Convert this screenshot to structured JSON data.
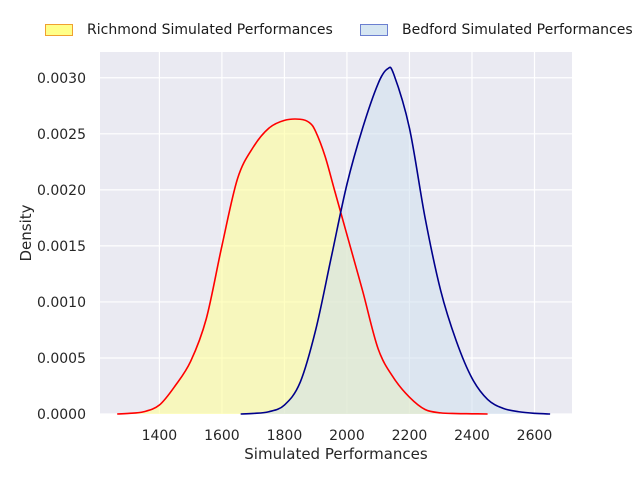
{
  "chart_data": {
    "type": "area",
    "xlabel": "Simulated Performances",
    "ylabel": "Density",
    "xlim": [
      1210,
      2720
    ],
    "ylim": [
      0,
      0.00323
    ],
    "xticks": [
      1400,
      1600,
      1800,
      2000,
      2200,
      2400,
      2600
    ],
    "xtick_labels": [
      "1400",
      "1600",
      "1800",
      "2000",
      "2200",
      "2400",
      "2600"
    ],
    "yticks": [
      0,
      0.0005,
      0.001,
      0.0015,
      0.002,
      0.0025,
      0.003
    ],
    "ytick_labels": [
      "0.0000",
      "0.0005",
      "0.0010",
      "0.0015",
      "0.0020",
      "0.0025",
      "0.0030"
    ],
    "grid": true,
    "legend_position": "top",
    "series": [
      {
        "name": "Richmond Simulated Performances",
        "line_color": "#ff0000",
        "fill_color": "#ffff99",
        "fill_opacity": 0.6,
        "x": [
          1265,
          1300,
          1350,
          1400,
          1450,
          1500,
          1550,
          1600,
          1650,
          1700,
          1750,
          1800,
          1850,
          1880,
          1900,
          1930,
          1960,
          2000,
          2050,
          2100,
          2150,
          2200,
          2250,
          2300,
          2350,
          2400,
          2450
        ],
        "y": [
          0.0,
          5e-06,
          2e-05,
          8e-05,
          0.00025,
          0.00047,
          0.00085,
          0.0015,
          0.0021,
          0.00238,
          0.00255,
          0.00262,
          0.00263,
          0.0026,
          0.00252,
          0.0023,
          0.002,
          0.0016,
          0.0011,
          0.00058,
          0.00032,
          0.00015,
          4e-05,
          1e-05,
          4e-06,
          2e-06,
          0.0
        ]
      },
      {
        "name": "Bedford Simulated Performances",
        "line_color": "#00008b",
        "fill_color": "#cfe0ef",
        "fill_opacity": 0.55,
        "x": [
          1660,
          1700,
          1750,
          1800,
          1850,
          1900,
          1950,
          2000,
          2050,
          2100,
          2130,
          2150,
          2200,
          2250,
          2300,
          2350,
          2400,
          2450,
          2500,
          2550,
          2600,
          2650
        ],
        "y": [
          0.0,
          5e-06,
          2e-05,
          8e-05,
          0.00028,
          0.00075,
          0.0014,
          0.00205,
          0.00255,
          0.00295,
          0.00308,
          0.00303,
          0.00255,
          0.00175,
          0.0011,
          0.00065,
          0.00032,
          0.00013,
          5e-05,
          2e-05,
          6e-06,
          0.0
        ]
      }
    ]
  }
}
